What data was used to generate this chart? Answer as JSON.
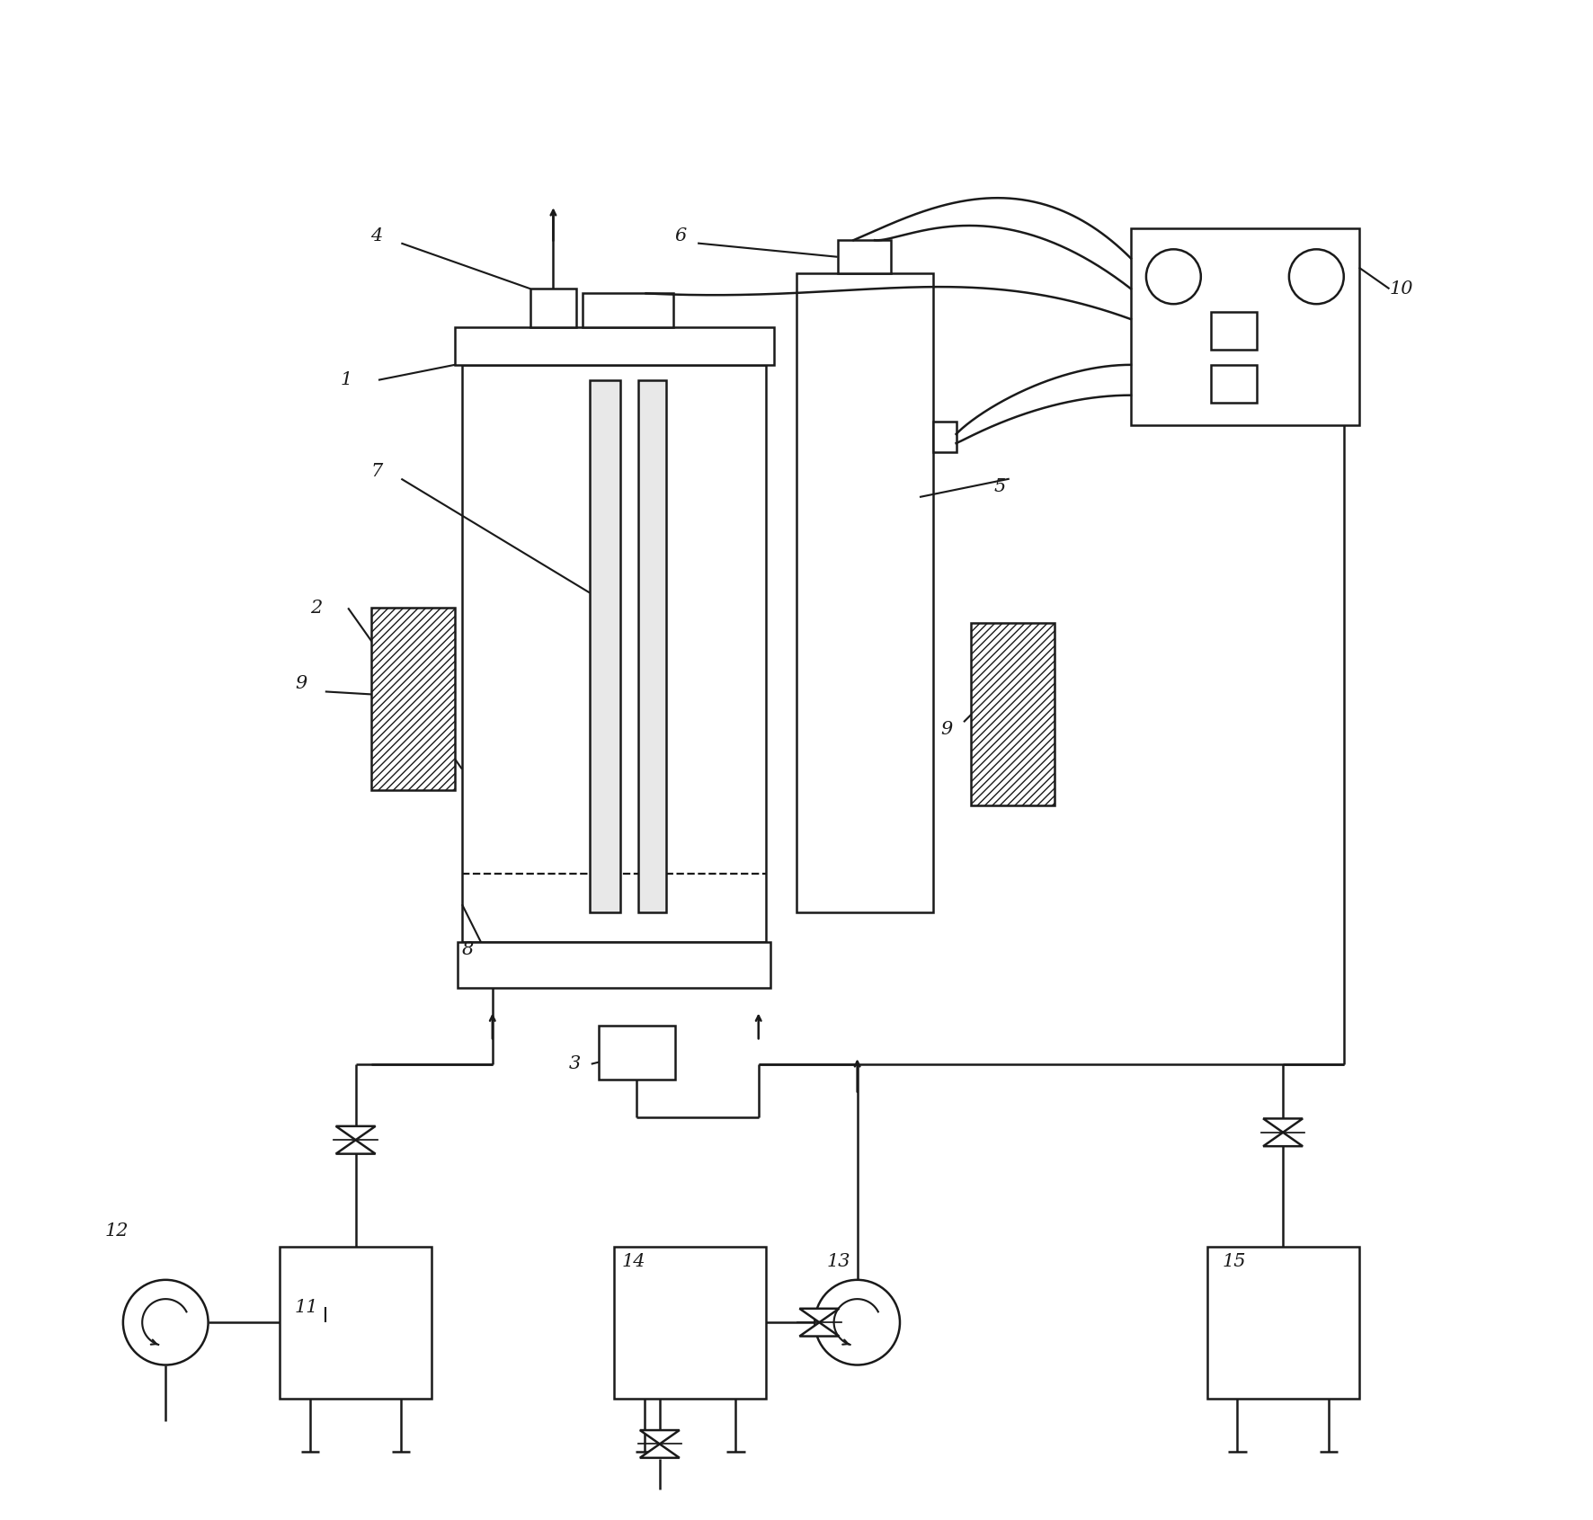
{
  "bg_color": "#ffffff",
  "line_color": "#1a1a1a",
  "label_fontsize": 15,
  "lw": 1.8,
  "figsize": [
    17.72,
    16.91
  ],
  "dpi": 100
}
